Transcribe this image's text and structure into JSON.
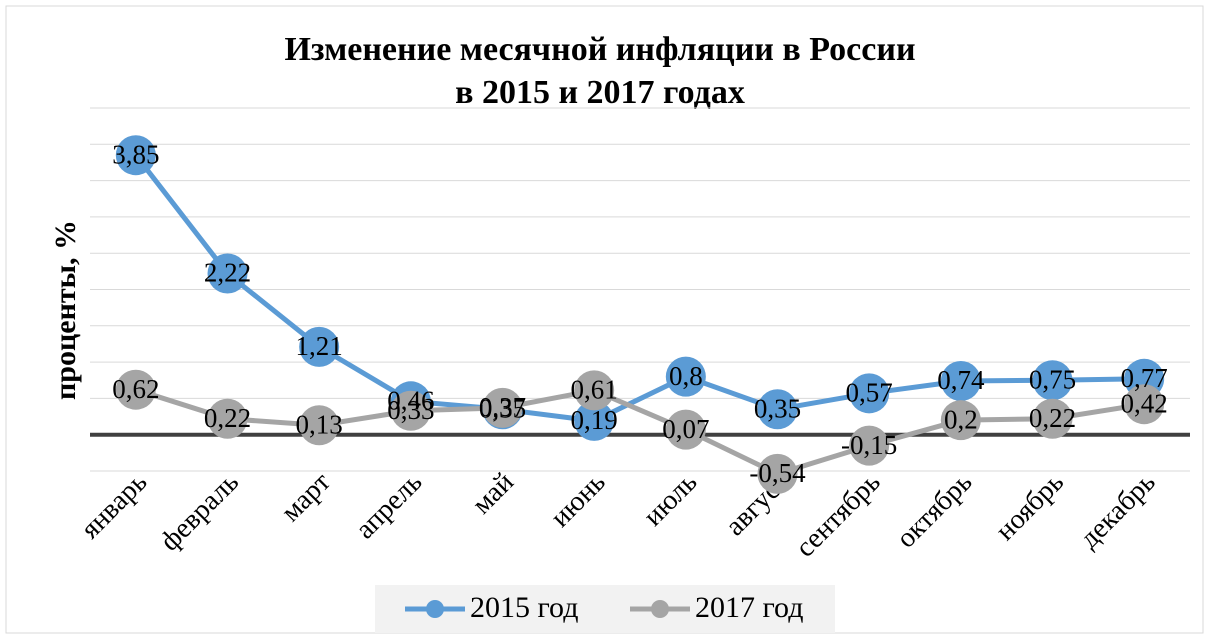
{
  "chart_data": {
    "type": "line",
    "title": "Изменение месячной инфляции в России",
    "subtitle": "в 2015 и 2017 годах",
    "ylabel": "проценты, %",
    "categories": [
      "январь",
      "февраль",
      "март",
      "апрель",
      "май",
      "июнь",
      "июль",
      "август",
      "сентябрь",
      "октябрь",
      "ноябрь",
      "декабрь"
    ],
    "series": [
      {
        "name": "2015 год",
        "color": "#5b9bd5",
        "values": [
          3.85,
          2.22,
          1.21,
          0.46,
          0.35,
          0.19,
          0.8,
          0.35,
          0.57,
          0.74,
          0.75,
          0.77
        ],
        "value_labels": [
          "3,85",
          "2,22",
          "1,21",
          "0,46",
          "0,35",
          "0,19",
          "0,8",
          "0,35",
          "0,57",
          "0,74",
          "0,75",
          "0,77"
        ]
      },
      {
        "name": "2017 год",
        "color": "#a5a5a5",
        "values": [
          0.62,
          0.22,
          0.13,
          0.33,
          0.37,
          0.61,
          0.07,
          -0.54,
          -0.15,
          0.2,
          0.22,
          0.42
        ],
        "value_labels": [
          "0,62",
          "0,22",
          "0,13",
          "0,33",
          "0,37",
          "0,61",
          "0,07",
          "-0,54",
          "-0,15",
          "0,2",
          "0,22",
          "0,42"
        ]
      }
    ],
    "ylim": [
      -0.5,
      4.5
    ],
    "yticks": [
      -0.5,
      0,
      0.5,
      1,
      1.5,
      2,
      2.5,
      3,
      3.5,
      4,
      4.5
    ],
    "grid": true,
    "legend": "bottom"
  }
}
